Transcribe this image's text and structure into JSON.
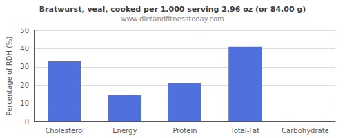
{
  "chart_data": {
    "type": "bar",
    "title": "Bratwurst, veal, cooked per 1.000 serving 2.96 oz (or 84.00 g)",
    "subtitle": "www.dietandfitnesstoday.com",
    "categories": [
      "Cholesterol",
      "Energy",
      "Protein",
      "Total-Fat",
      "Carbohydrate"
    ],
    "values": [
      33,
      14.5,
      21,
      41,
      0.4
    ],
    "ylabel": "Percentage of RDH (%)",
    "ylim": [
      0,
      50
    ],
    "yticks": [
      0,
      10,
      20,
      30,
      40,
      50
    ],
    "grid": true
  }
}
